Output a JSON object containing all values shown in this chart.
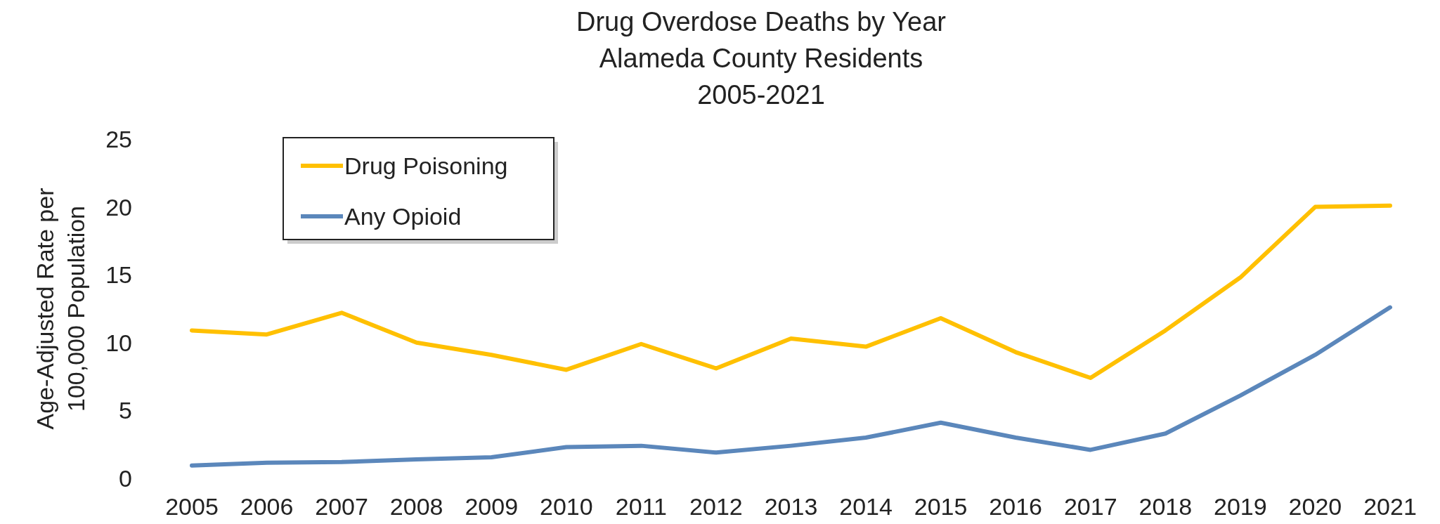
{
  "chart_data": {
    "type": "line",
    "title": "Drug Overdose Deaths by Year\nAlameda County Residents\n2005-2021",
    "ylabel": "Age-Adjusted Rate per 100,000 Population",
    "categories": [
      "2005",
      "2006",
      "2007",
      "2008",
      "2009",
      "2010",
      "2011",
      "2012",
      "2013",
      "2014",
      "2015",
      "2016",
      "2017",
      "2018",
      "2019",
      "2020",
      "2021"
    ],
    "series": [
      {
        "name": "Drug Poisoning",
        "color": "#ffc000",
        "values": [
          10.9,
          10.6,
          12.2,
          10.0,
          9.1,
          8.0,
          9.9,
          8.1,
          10.3,
          9.7,
          11.8,
          9.3,
          7.4,
          10.9,
          14.8,
          20.0,
          20.1
        ]
      },
      {
        "name": "Any Opioid",
        "color": "#5b87bb",
        "values": [
          0.95,
          1.15,
          1.2,
          1.4,
          1.55,
          2.3,
          2.4,
          1.9,
          2.4,
          3.0,
          4.1,
          3.0,
          2.1,
          3.3,
          6.1,
          9.1,
          12.6
        ]
      }
    ],
    "ylim": [
      0,
      25
    ],
    "yticks": [
      0,
      5,
      10,
      15,
      20,
      25
    ],
    "grid": false,
    "legend": "top left",
    "marker": "none",
    "line_style": "solid"
  }
}
